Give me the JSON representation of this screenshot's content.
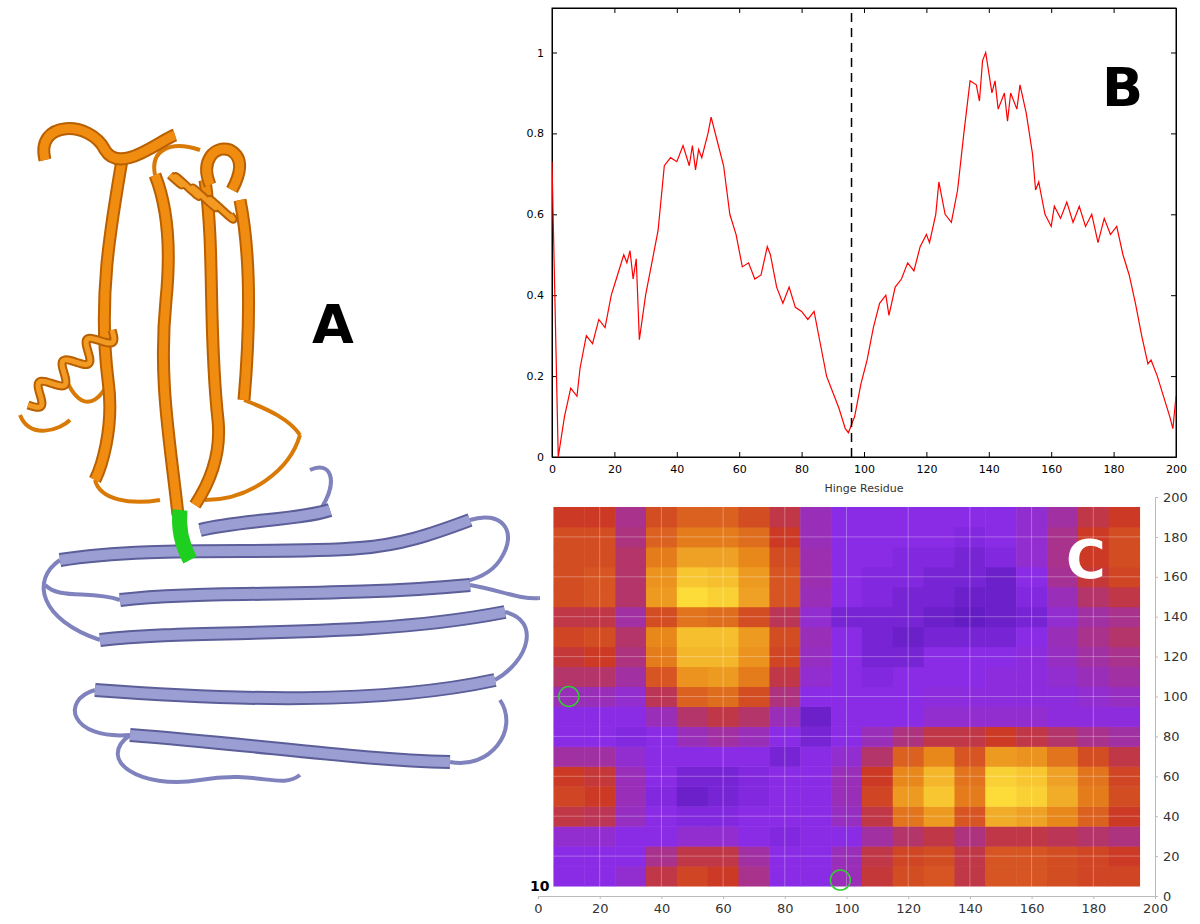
{
  "panel_labels": [
    "A",
    "B",
    "C"
  ],
  "chart_data": [
    {
      "type": "line",
      "xlabel": "Hinge Residue",
      "xlim": [
        0,
        200
      ],
      "xticks": [
        0,
        20,
        40,
        60,
        80,
        100,
        120,
        140,
        160,
        180,
        200
      ],
      "ylim": [
        0,
        1.11
      ],
      "yticks": [
        0,
        0.2,
        0.4,
        0.6,
        0.8,
        1
      ],
      "series": [
        {
          "color": "#ff0000",
          "line_style": "solid",
          "x": [
            0,
            2,
            4,
            6,
            8,
            9,
            11,
            13,
            15,
            17,
            19,
            21,
            23,
            24,
            25,
            26,
            27,
            28,
            30,
            32,
            34,
            36,
            38,
            40,
            42,
            44,
            45,
            46,
            47,
            48,
            50,
            51,
            53,
            55,
            57,
            59,
            61,
            63,
            65,
            67,
            69,
            70,
            72,
            74,
            76,
            78,
            80,
            82,
            84,
            86,
            88,
            90,
            92,
            94,
            95,
            97,
            99,
            101,
            103,
            105,
            107,
            108,
            110,
            112,
            114,
            116,
            118,
            120,
            121,
            123,
            124,
            126,
            128,
            130,
            132,
            134,
            136,
            137,
            138,
            139,
            141,
            142,
            143,
            145,
            146,
            147,
            149,
            150,
            152,
            154,
            155,
            156,
            158,
            160,
            161,
            163,
            165,
            167,
            169,
            171,
            173,
            175,
            177,
            179,
            181,
            183,
            185,
            187,
            189,
            191,
            192,
            194,
            196,
            198,
            199,
            200
          ],
          "values": [
            0.73,
            0,
            0.1,
            0.17,
            0.15,
            0.22,
            0.3,
            0.28,
            0.34,
            0.32,
            0.4,
            0.45,
            0.5,
            0.48,
            0.51,
            0.44,
            0.49,
            0.29,
            0.4,
            0.48,
            0.56,
            0.72,
            0.74,
            0.73,
            0.77,
            0.72,
            0.77,
            0.71,
            0.76,
            0.74,
            0.8,
            0.84,
            0.78,
            0.72,
            0.6,
            0.55,
            0.47,
            0.48,
            0.44,
            0.45,
            0.52,
            0.5,
            0.42,
            0.38,
            0.42,
            0.37,
            0.36,
            0.34,
            0.36,
            0.28,
            0.2,
            0.16,
            0.12,
            0.07,
            0.06,
            0.1,
            0.18,
            0.24,
            0.32,
            0.38,
            0.4,
            0.35,
            0.42,
            0.44,
            0.48,
            0.46,
            0.52,
            0.55,
            0.53,
            0.6,
            0.68,
            0.6,
            0.58,
            0.66,
            0.8,
            0.93,
            0.92,
            0.88,
            0.98,
            1.0,
            0.9,
            0.93,
            0.86,
            0.9,
            0.83,
            0.9,
            0.86,
            0.92,
            0.85,
            0.75,
            0.66,
            0.68,
            0.6,
            0.57,
            0.62,
            0.59,
            0.63,
            0.58,
            0.62,
            0.57,
            0.6,
            0.53,
            0.59,
            0.55,
            0.57,
            0.5,
            0.45,
            0.38,
            0.3,
            0.23,
            0.24,
            0.2,
            0.15,
            0.1,
            0.07,
            0.15
          ]
        },
        {
          "type": "vline",
          "color": "#000000",
          "line_style": "dashed",
          "x": [
            96
          ]
        }
      ]
    },
    {
      "type": "heatmap",
      "xlim": [
        0,
        200
      ],
      "xticks": [
        0,
        20,
        40,
        60,
        80,
        100,
        120,
        140,
        160,
        180,
        200
      ],
      "ylim": [
        0,
        200
      ],
      "yticks": [
        0,
        20,
        40,
        60,
        80,
        100,
        120,
        140,
        160,
        180,
        200
      ],
      "grid": true,
      "annotations": [
        "10"
      ],
      "zlim": [
        0,
        1
      ],
      "x": [
        10,
        20,
        30,
        40,
        50,
        60,
        70,
        80,
        90,
        100,
        110,
        120,
        130,
        140,
        150,
        160,
        170,
        180,
        190
      ],
      "y": [
        10,
        20,
        30,
        40,
        50,
        60,
        70,
        80,
        90,
        100,
        110,
        120,
        130,
        140,
        150,
        160,
        170,
        180,
        190
      ],
      "z": [
        [
          0.2,
          0.2,
          0.25,
          0.5,
          0.58,
          0.55,
          0.4,
          0.2,
          0.2,
          0.3,
          0.52,
          0.6,
          0.62,
          0.5,
          0.62,
          0.62,
          0.6,
          0.58,
          0.58
        ],
        [
          0.2,
          0.2,
          0.2,
          0.4,
          0.5,
          0.5,
          0.35,
          0.2,
          0.2,
          0.3,
          0.5,
          0.58,
          0.6,
          0.5,
          0.62,
          0.62,
          0.6,
          0.58,
          0.55
        ],
        [
          0.25,
          0.25,
          0.2,
          0.2,
          0.25,
          0.25,
          0.2,
          0.18,
          0.2,
          0.2,
          0.35,
          0.45,
          0.5,
          0.42,
          0.5,
          0.5,
          0.48,
          0.45,
          0.42
        ],
        [
          0.5,
          0.48,
          0.28,
          0.2,
          0.18,
          0.18,
          0.2,
          0.2,
          0.2,
          0.28,
          0.5,
          0.7,
          0.8,
          0.62,
          0.85,
          0.82,
          0.75,
          0.65,
          0.55
        ],
        [
          0.58,
          0.55,
          0.3,
          0.18,
          0.12,
          0.15,
          0.18,
          0.2,
          0.2,
          0.3,
          0.58,
          0.8,
          0.92,
          0.72,
          0.98,
          0.95,
          0.85,
          0.72,
          0.6
        ],
        [
          0.55,
          0.52,
          0.3,
          0.2,
          0.15,
          0.15,
          0.18,
          0.2,
          0.2,
          0.3,
          0.55,
          0.75,
          0.88,
          0.7,
          0.95,
          0.92,
          0.82,
          0.7,
          0.58
        ],
        [
          0.35,
          0.35,
          0.25,
          0.2,
          0.2,
          0.2,
          0.2,
          0.15,
          0.2,
          0.25,
          0.45,
          0.65,
          0.75,
          0.62,
          0.8,
          0.78,
          0.7,
          0.6,
          0.5
        ],
        [
          0.2,
          0.2,
          0.18,
          0.2,
          0.3,
          0.35,
          0.3,
          0.2,
          0.15,
          0.2,
          0.3,
          0.42,
          0.5,
          0.5,
          0.55,
          0.5,
          0.45,
          0.4,
          0.35
        ],
        [
          0.2,
          0.2,
          0.2,
          0.3,
          0.45,
          0.5,
          0.45,
          0.3,
          0.12,
          0.2,
          0.2,
          0.2,
          0.25,
          0.25,
          0.25,
          0.25,
          0.22,
          0.22,
          0.22
        ],
        [
          0.3,
          0.3,
          0.25,
          0.48,
          0.65,
          0.68,
          0.6,
          0.42,
          0.2,
          0.2,
          0.2,
          0.2,
          0.22,
          0.22,
          0.22,
          0.22,
          0.22,
          0.25,
          0.28
        ],
        [
          0.45,
          0.45,
          0.35,
          0.62,
          0.78,
          0.8,
          0.72,
          0.5,
          0.25,
          0.2,
          0.18,
          0.2,
          0.2,
          0.2,
          0.22,
          0.22,
          0.25,
          0.3,
          0.35
        ],
        [
          0.52,
          0.55,
          0.42,
          0.72,
          0.88,
          0.88,
          0.78,
          0.58,
          0.28,
          0.2,
          0.15,
          0.15,
          0.2,
          0.2,
          0.2,
          0.22,
          0.28,
          0.35,
          0.4
        ],
        [
          0.58,
          0.6,
          0.45,
          0.75,
          0.9,
          0.9,
          0.8,
          0.6,
          0.3,
          0.2,
          0.15,
          0.12,
          0.15,
          0.15,
          0.15,
          0.2,
          0.3,
          0.4,
          0.45
        ],
        [
          0.5,
          0.5,
          0.35,
          0.6,
          0.7,
          0.68,
          0.6,
          0.48,
          0.25,
          0.15,
          0.15,
          0.15,
          0.12,
          0.1,
          0.12,
          0.15,
          0.25,
          0.35,
          0.4
        ],
        [
          0.6,
          0.62,
          0.45,
          0.8,
          0.98,
          0.95,
          0.82,
          0.62,
          0.3,
          0.2,
          0.18,
          0.15,
          0.15,
          0.12,
          0.12,
          0.18,
          0.3,
          0.45,
          0.5
        ],
        [
          0.6,
          0.62,
          0.45,
          0.78,
          0.92,
          0.9,
          0.8,
          0.62,
          0.32,
          0.2,
          0.18,
          0.18,
          0.15,
          0.15,
          0.12,
          0.2,
          0.38,
          0.52,
          0.58
        ],
        [
          0.6,
          0.6,
          0.45,
          0.72,
          0.82,
          0.82,
          0.75,
          0.6,
          0.32,
          0.2,
          0.2,
          0.18,
          0.18,
          0.15,
          0.18,
          0.25,
          0.4,
          0.55,
          0.6
        ],
        [
          0.6,
          0.6,
          0.42,
          0.65,
          0.72,
          0.72,
          0.68,
          0.55,
          0.3,
          0.2,
          0.2,
          0.2,
          0.2,
          0.18,
          0.2,
          0.25,
          0.4,
          0.55,
          0.6
        ],
        [
          0.55,
          0.55,
          0.4,
          0.6,
          0.65,
          0.65,
          0.6,
          0.5,
          0.3,
          0.2,
          0.2,
          0.2,
          0.2,
          0.2,
          0.2,
          0.25,
          0.35,
          0.5,
          0.55
        ]
      ],
      "series": [
        {
          "type": "scatter",
          "marker": "circle",
          "color": "#33cc33",
          "x": [
            10,
            98
          ],
          "values": [
            100,
            8
          ]
        }
      ]
    }
  ]
}
